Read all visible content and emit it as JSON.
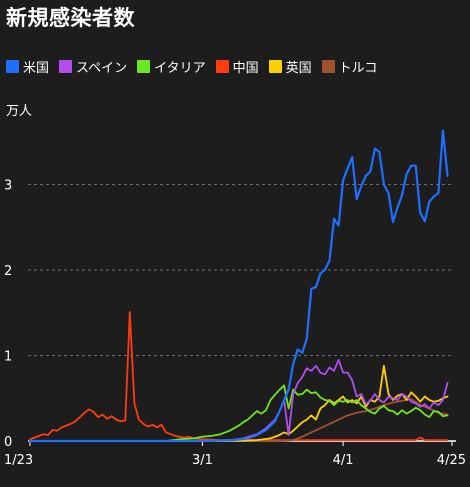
{
  "chart_data": {
    "type": "line",
    "title": "新規感染者数",
    "ylabel": "万人",
    "xlabel": "",
    "ylim": [
      0,
      3.7
    ],
    "yticks": [
      "0",
      "1",
      "2",
      "3"
    ],
    "xticks": [
      {
        "day": 0,
        "label": "1/23"
      },
      {
        "day": 38,
        "label": "3/1"
      },
      {
        "day": 69,
        "label": "4/1"
      },
      {
        "day": 93,
        "label": "4/25"
      }
    ],
    "grid": "horizontal dashed",
    "legend_position": "top",
    "series": [
      {
        "name": "米国",
        "color": "#1f6fff",
        "values": [
          {
            "d": 0,
            "v": 0
          },
          {
            "d": 20,
            "v": 0
          },
          {
            "d": 38,
            "v": 0
          },
          {
            "d": 45,
            "v": 0.01
          },
          {
            "d": 48,
            "v": 0.03
          },
          {
            "d": 50,
            "v": 0.07
          },
          {
            "d": 52,
            "v": 0.13
          },
          {
            "d": 54,
            "v": 0.23
          },
          {
            "d": 55,
            "v": 0.35
          },
          {
            "d": 56,
            "v": 0.48
          },
          {
            "d": 57,
            "v": 0.6
          },
          {
            "d": 58,
            "v": 0.9
          },
          {
            "d": 59,
            "v": 1.07
          },
          {
            "d": 60,
            "v": 1.03
          },
          {
            "d": 61,
            "v": 1.2
          },
          {
            "d": 62,
            "v": 1.78
          },
          {
            "d": 63,
            "v": 1.8
          },
          {
            "d": 64,
            "v": 1.96
          },
          {
            "d": 65,
            "v": 2.0
          },
          {
            "d": 66,
            "v": 2.11
          },
          {
            "d": 67,
            "v": 2.6
          },
          {
            "d": 68,
            "v": 2.52
          },
          {
            "d": 69,
            "v": 3.05
          },
          {
            "d": 70,
            "v": 3.19
          },
          {
            "d": 71,
            "v": 3.32
          },
          {
            "d": 72,
            "v": 2.83
          },
          {
            "d": 73,
            "v": 2.98
          },
          {
            "d": 74,
            "v": 3.1
          },
          {
            "d": 75,
            "v": 3.15
          },
          {
            "d": 76,
            "v": 3.42
          },
          {
            "d": 77,
            "v": 3.38
          },
          {
            "d": 78,
            "v": 3.0
          },
          {
            "d": 79,
            "v": 2.9
          },
          {
            "d": 80,
            "v": 2.56
          },
          {
            "d": 81,
            "v": 2.73
          },
          {
            "d": 82,
            "v": 2.88
          },
          {
            "d": 83,
            "v": 3.12
          },
          {
            "d": 84,
            "v": 3.22
          },
          {
            "d": 85,
            "v": 3.22
          },
          {
            "d": 86,
            "v": 2.67
          },
          {
            "d": 87,
            "v": 2.57
          },
          {
            "d": 88,
            "v": 2.8
          },
          {
            "d": 89,
            "v": 2.86
          },
          {
            "d": 90,
            "v": 2.9
          },
          {
            "d": 91,
            "v": 3.63
          },
          {
            "d": 92,
            "v": 3.1
          }
        ]
      },
      {
        "name": "スペイン",
        "color": "#b44df0",
        "values": [
          {
            "d": 0,
            "v": 0
          },
          {
            "d": 38,
            "v": 0
          },
          {
            "d": 44,
            "v": 0.01
          },
          {
            "d": 47,
            "v": 0.03
          },
          {
            "d": 50,
            "v": 0.08
          },
          {
            "d": 52,
            "v": 0.15
          },
          {
            "d": 54,
            "v": 0.25
          },
          {
            "d": 55,
            "v": 0.35
          },
          {
            "d": 56,
            "v": 0.48
          },
          {
            "d": 57,
            "v": 0.07
          },
          {
            "d": 58,
            "v": 0.55
          },
          {
            "d": 59,
            "v": 0.68
          },
          {
            "d": 60,
            "v": 0.75
          },
          {
            "d": 61,
            "v": 0.85
          },
          {
            "d": 62,
            "v": 0.82
          },
          {
            "d": 63,
            "v": 0.88
          },
          {
            "d": 64,
            "v": 0.8
          },
          {
            "d": 65,
            "v": 0.78
          },
          {
            "d": 66,
            "v": 0.86
          },
          {
            "d": 67,
            "v": 0.82
          },
          {
            "d": 68,
            "v": 0.95
          },
          {
            "d": 69,
            "v": 0.8
          },
          {
            "d": 70,
            "v": 0.8
          },
          {
            "d": 71,
            "v": 0.71
          },
          {
            "d": 72,
            "v": 0.52
          },
          {
            "d": 73,
            "v": 0.55
          },
          {
            "d": 74,
            "v": 0.43
          },
          {
            "d": 75,
            "v": 0.47
          },
          {
            "d": 76,
            "v": 0.55
          },
          {
            "d": 77,
            "v": 0.48
          },
          {
            "d": 78,
            "v": 0.45
          },
          {
            "d": 79,
            "v": 0.52
          },
          {
            "d": 80,
            "v": 0.5
          },
          {
            "d": 81,
            "v": 0.48
          },
          {
            "d": 82,
            "v": 0.55
          },
          {
            "d": 83,
            "v": 0.52
          },
          {
            "d": 84,
            "v": 0.46
          },
          {
            "d": 85,
            "v": 0.44
          },
          {
            "d": 86,
            "v": 0.4
          },
          {
            "d": 87,
            "v": 0.43
          },
          {
            "d": 88,
            "v": 0.38
          },
          {
            "d": 89,
            "v": 0.45
          },
          {
            "d": 90,
            "v": 0.42
          },
          {
            "d": 91,
            "v": 0.48
          },
          {
            "d": 92,
            "v": 0.68
          }
        ]
      },
      {
        "name": "イタリア",
        "color": "#6ee81e",
        "values": [
          {
            "d": 0,
            "v": 0
          },
          {
            "d": 30,
            "v": 0
          },
          {
            "d": 33,
            "v": 0.02
          },
          {
            "d": 36,
            "v": 0.03
          },
          {
            "d": 38,
            "v": 0.05
          },
          {
            "d": 40,
            "v": 0.06
          },
          {
            "d": 42,
            "v": 0.08
          },
          {
            "d": 44,
            "v": 0.12
          },
          {
            "d": 46,
            "v": 0.18
          },
          {
            "d": 47,
            "v": 0.22
          },
          {
            "d": 48,
            "v": 0.25
          },
          {
            "d": 49,
            "v": 0.3
          },
          {
            "d": 50,
            "v": 0.35
          },
          {
            "d": 51,
            "v": 0.32
          },
          {
            "d": 52,
            "v": 0.36
          },
          {
            "d": 53,
            "v": 0.48
          },
          {
            "d": 54,
            "v": 0.54
          },
          {
            "d": 55,
            "v": 0.6
          },
          {
            "d": 56,
            "v": 0.65
          },
          {
            "d": 57,
            "v": 0.38
          },
          {
            "d": 58,
            "v": 0.6
          },
          {
            "d": 59,
            "v": 0.54
          },
          {
            "d": 60,
            "v": 0.55
          },
          {
            "d": 61,
            "v": 0.6
          },
          {
            "d": 62,
            "v": 0.56
          },
          {
            "d": 63,
            "v": 0.57
          },
          {
            "d": 64,
            "v": 0.51
          },
          {
            "d": 65,
            "v": 0.48
          },
          {
            "d": 66,
            "v": 0.47
          },
          {
            "d": 67,
            "v": 0.42
          },
          {
            "d": 68,
            "v": 0.47
          },
          {
            "d": 69,
            "v": 0.46
          },
          {
            "d": 70,
            "v": 0.48
          },
          {
            "d": 71,
            "v": 0.45
          },
          {
            "d": 72,
            "v": 0.48
          },
          {
            "d": 73,
            "v": 0.42
          },
          {
            "d": 74,
            "v": 0.38
          },
          {
            "d": 75,
            "v": 0.34
          },
          {
            "d": 76,
            "v": 0.32
          },
          {
            "d": 77,
            "v": 0.38
          },
          {
            "d": 78,
            "v": 0.41
          },
          {
            "d": 79,
            "v": 0.36
          },
          {
            "d": 80,
            "v": 0.35
          },
          {
            "d": 81,
            "v": 0.31
          },
          {
            "d": 82,
            "v": 0.36
          },
          {
            "d": 83,
            "v": 0.32
          },
          {
            "d": 84,
            "v": 0.35
          },
          {
            "d": 85,
            "v": 0.39
          },
          {
            "d": 86,
            "v": 0.36
          },
          {
            "d": 87,
            "v": 0.31
          },
          {
            "d": 88,
            "v": 0.28
          },
          {
            "d": 89,
            "v": 0.35
          },
          {
            "d": 90,
            "v": 0.34
          },
          {
            "d": 91,
            "v": 0.29
          },
          {
            "d": 92,
            "v": 0.3
          }
        ]
      },
      {
        "name": "中国",
        "color": "#ff3b10",
        "values": [
          {
            "d": 0,
            "v": 0.02
          },
          {
            "d": 1,
            "v": 0.04
          },
          {
            "d": 2,
            "v": 0.06
          },
          {
            "d": 3,
            "v": 0.08
          },
          {
            "d": 4,
            "v": 0.07
          },
          {
            "d": 5,
            "v": 0.13
          },
          {
            "d": 6,
            "v": 0.12
          },
          {
            "d": 7,
            "v": 0.16
          },
          {
            "d": 8,
            "v": 0.18
          },
          {
            "d": 9,
            "v": 0.2
          },
          {
            "d": 10,
            "v": 0.23
          },
          {
            "d": 11,
            "v": 0.28
          },
          {
            "d": 12,
            "v": 0.33
          },
          {
            "d": 13,
            "v": 0.37
          },
          {
            "d": 14,
            "v": 0.34
          },
          {
            "d": 15,
            "v": 0.28
          },
          {
            "d": 16,
            "v": 0.31
          },
          {
            "d": 17,
            "v": 0.26
          },
          {
            "d": 18,
            "v": 0.29
          },
          {
            "d": 19,
            "v": 0.25
          },
          {
            "d": 20,
            "v": 0.23
          },
          {
            "d": 21,
            "v": 0.24
          },
          {
            "d": 22,
            "v": 1.51
          },
          {
            "d": 23,
            "v": 0.44
          },
          {
            "d": 24,
            "v": 0.25
          },
          {
            "d": 25,
            "v": 0.2
          },
          {
            "d": 26,
            "v": 0.17
          },
          {
            "d": 27,
            "v": 0.19
          },
          {
            "d": 28,
            "v": 0.16
          },
          {
            "d": 29,
            "v": 0.19
          },
          {
            "d": 30,
            "v": 0.1
          },
          {
            "d": 31,
            "v": 0.08
          },
          {
            "d": 32,
            "v": 0.06
          },
          {
            "d": 33,
            "v": 0.05
          },
          {
            "d": 34,
            "v": 0.04
          },
          {
            "d": 35,
            "v": 0.05
          },
          {
            "d": 36,
            "v": 0.03
          },
          {
            "d": 38,
            "v": 0.02
          },
          {
            "d": 42,
            "v": 0.01
          },
          {
            "d": 50,
            "v": 0.01
          },
          {
            "d": 70,
            "v": 0.01
          },
          {
            "d": 85,
            "v": 0.01
          },
          {
            "d": 86,
            "v": 0.04
          },
          {
            "d": 87,
            "v": 0.01
          },
          {
            "d": 92,
            "v": 0.01
          }
        ]
      },
      {
        "name": "英国",
        "color": "#ffd000",
        "values": [
          {
            "d": 0,
            "v": 0
          },
          {
            "d": 45,
            "v": 0
          },
          {
            "d": 50,
            "v": 0.01
          },
          {
            "d": 53,
            "v": 0.03
          },
          {
            "d": 55,
            "v": 0.07
          },
          {
            "d": 56,
            "v": 0.1
          },
          {
            "d": 57,
            "v": 0.08
          },
          {
            "d": 58,
            "v": 0.12
          },
          {
            "d": 59,
            "v": 0.17
          },
          {
            "d": 60,
            "v": 0.22
          },
          {
            "d": 61,
            "v": 0.25
          },
          {
            "d": 62,
            "v": 0.3
          },
          {
            "d": 63,
            "v": 0.25
          },
          {
            "d": 64,
            "v": 0.38
          },
          {
            "d": 65,
            "v": 0.42
          },
          {
            "d": 66,
            "v": 0.48
          },
          {
            "d": 67,
            "v": 0.44
          },
          {
            "d": 68,
            "v": 0.48
          },
          {
            "d": 69,
            "v": 0.52
          },
          {
            "d": 70,
            "v": 0.45
          },
          {
            "d": 71,
            "v": 0.48
          },
          {
            "d": 72,
            "v": 0.44
          },
          {
            "d": 73,
            "v": 0.52
          },
          {
            "d": 74,
            "v": 0.4
          },
          {
            "d": 75,
            "v": 0.48
          },
          {
            "d": 76,
            "v": 0.46
          },
          {
            "d": 77,
            "v": 0.52
          },
          {
            "d": 78,
            "v": 0.88
          },
          {
            "d": 79,
            "v": 0.55
          },
          {
            "d": 80,
            "v": 0.48
          },
          {
            "d": 81,
            "v": 0.53
          },
          {
            "d": 82,
            "v": 0.55
          },
          {
            "d": 83,
            "v": 0.48
          },
          {
            "d": 84,
            "v": 0.57
          },
          {
            "d": 85,
            "v": 0.52
          },
          {
            "d": 86,
            "v": 0.46
          },
          {
            "d": 87,
            "v": 0.52
          },
          {
            "d": 88,
            "v": 0.48
          },
          {
            "d": 89,
            "v": 0.46
          },
          {
            "d": 90,
            "v": 0.47
          },
          {
            "d": 91,
            "v": 0.5
          },
          {
            "d": 92,
            "v": 0.52
          }
        ]
      },
      {
        "name": "トルコ",
        "color": "#a0522d",
        "values": [
          {
            "d": 0,
            "v": 0
          },
          {
            "d": 55,
            "v": 0
          },
          {
            "d": 58,
            "v": 0.01
          },
          {
            "d": 60,
            "v": 0.05
          },
          {
            "d": 62,
            "v": 0.1
          },
          {
            "d": 64,
            "v": 0.15
          },
          {
            "d": 66,
            "v": 0.2
          },
          {
            "d": 68,
            "v": 0.25
          },
          {
            "d": 70,
            "v": 0.3
          },
          {
            "d": 72,
            "v": 0.33
          },
          {
            "d": 74,
            "v": 0.35
          },
          {
            "d": 76,
            "v": 0.38
          },
          {
            "d": 78,
            "v": 0.42
          },
          {
            "d": 80,
            "v": 0.45
          },
          {
            "d": 82,
            "v": 0.47
          },
          {
            "d": 84,
            "v": 0.49
          },
          {
            "d": 86,
            "v": 0.42
          },
          {
            "d": 88,
            "v": 0.38
          },
          {
            "d": 90,
            "v": 0.33
          },
          {
            "d": 92,
            "v": 0.31
          }
        ]
      }
    ]
  }
}
